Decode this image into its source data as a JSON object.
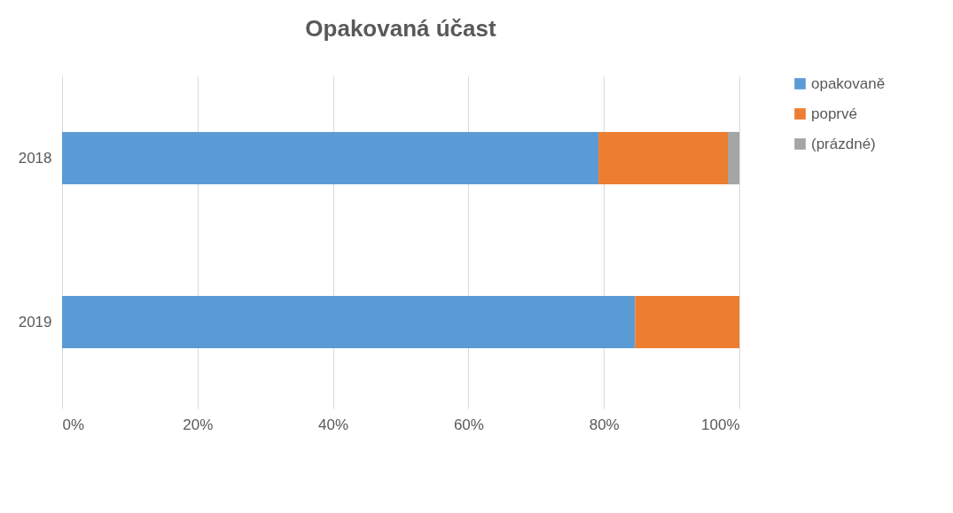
{
  "chart_data": {
    "type": "bar",
    "orientation": "horizontal",
    "stacked": true,
    "title": "Opakovaná účast",
    "categories": [
      "2018",
      "2019"
    ],
    "series": [
      {
        "name": "opakovaně",
        "color": "#5b9bd5",
        "values": [
          79.2,
          84.6
        ]
      },
      {
        "name": "poprvé",
        "color": "#ed7d31",
        "values": [
          19.1,
          15.4
        ]
      },
      {
        "name": "(prázdné)",
        "color": "#a5a5a5",
        "values": [
          1.7,
          null
        ]
      }
    ],
    "xlim": [
      0,
      100
    ],
    "xticks": [
      {
        "value": 0,
        "label": "0%"
      },
      {
        "value": 20,
        "label": "20%"
      },
      {
        "value": 40,
        "label": "40%"
      },
      {
        "value": 60,
        "label": "60%"
      },
      {
        "value": 80,
        "label": "80%"
      },
      {
        "value": 100,
        "label": "100%"
      }
    ],
    "grid": "x",
    "legend": "right"
  }
}
